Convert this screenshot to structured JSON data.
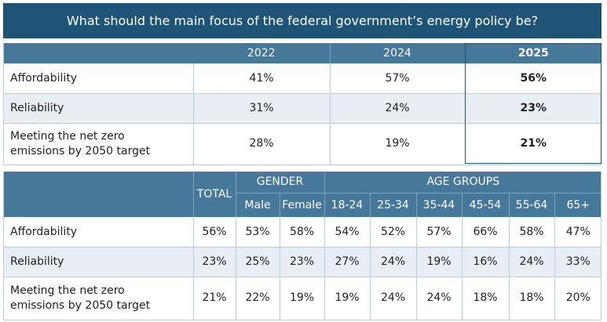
{
  "title": "What should the main focus of the federal government’s energy policy be?",
  "chart_data": [
    {
      "type": "table",
      "columns": [
        "2022",
        "2024",
        "2025"
      ],
      "highlighted_column": "2025",
      "rows": [
        {
          "label": "Affordability",
          "values": [
            "41%",
            "57%",
            "56%"
          ]
        },
        {
          "label": "Reliability",
          "values": [
            "31%",
            "24%",
            "23%"
          ]
        },
        {
          "label_line1": "Meeting the net zero",
          "label_line2": "emissions by 2050 target",
          "values": [
            "28%",
            "19%",
            "21%"
          ]
        }
      ]
    },
    {
      "type": "table",
      "group_headers": {
        "total": "TOTAL",
        "gender": "GENDER",
        "age": "AGE GROUPS"
      },
      "columns": [
        "Male",
        "Female",
        "18-24",
        "25-34",
        "35-44",
        "45-54",
        "55-64",
        "65+"
      ],
      "rows": [
        {
          "label": "Affordability",
          "total": "56%",
          "values": [
            "53%",
            "58%",
            "54%",
            "52%",
            "57%",
            "66%",
            "58%",
            "47%"
          ]
        },
        {
          "label": "Reliability",
          "total": "23%",
          "values": [
            "25%",
            "23%",
            "27%",
            "24%",
            "19%",
            "16%",
            "24%",
            "33%"
          ]
        },
        {
          "label_line1": "Meeting the net zero",
          "label_line2": "emissions by 2050 target",
          "total": "21%",
          "values": [
            "22%",
            "19%",
            "19%",
            "24%",
            "24%",
            "18%",
            "18%",
            "20%"
          ]
        }
      ]
    }
  ],
  "colors": {
    "title_bg": "#1f5476",
    "header_bg": "#46789a",
    "stripe_bg": "#e8eef3",
    "highlight_border": "#1f5476"
  }
}
